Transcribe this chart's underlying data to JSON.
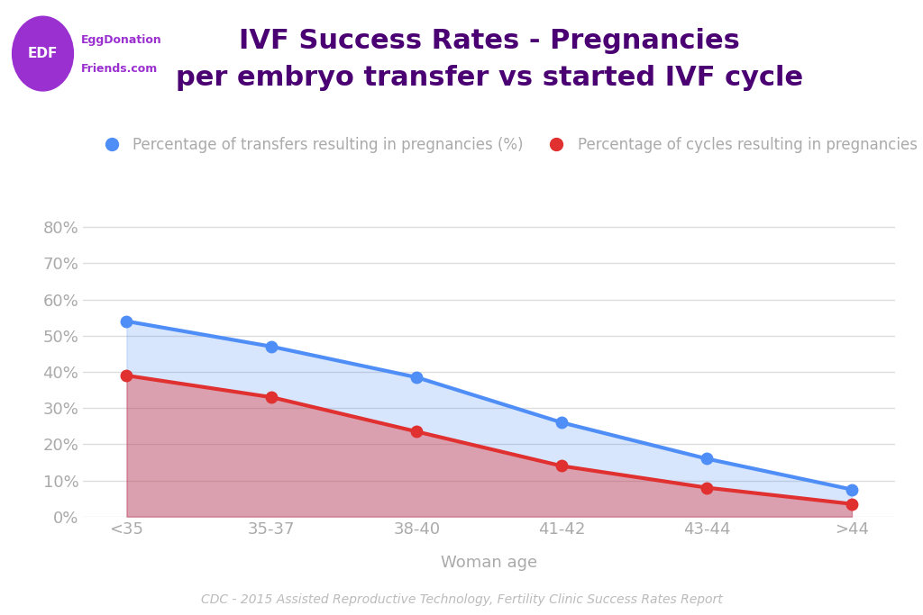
{
  "title_line1": "IVF Success Rates - Pregnancies",
  "title_line2": "per embryo transfer vs started IVF cycle",
  "title_color": "#4a0072",
  "xlabel": "Woman age",
  "xlabel_color": "#888888",
  "footer": "CDC - 2015 Assisted Reproductive Technology, Fertility Clinic Success Rates Report",
  "footer_color": "#bbbbbb",
  "categories": [
    "<35",
    "35-37",
    "38-40",
    "41-42",
    "43-44",
    ">44"
  ],
  "blue_values": [
    0.54,
    0.47,
    0.385,
    0.26,
    0.16,
    0.075
  ],
  "red_values": [
    0.39,
    0.33,
    0.235,
    0.14,
    0.08,
    0.035
  ],
  "blue_color": "#4f8ef7",
  "red_color": "#e03030",
  "blue_label": "Percentage of transfers resulting in pregnancies (%)",
  "red_label": "Percentage of cycles resulting in pregnancies (%)",
  "ylim": [
    0,
    0.85
  ],
  "yticks": [
    0.0,
    0.1,
    0.2,
    0.3,
    0.4,
    0.5,
    0.6,
    0.7,
    0.8
  ],
  "ytick_labels": [
    "0%",
    "10%",
    "20%",
    "30%",
    "40%",
    "50%",
    "60%",
    "70%",
    "80%"
  ],
  "grid_color": "#dddddd",
  "bg_color": "#ffffff",
  "logo_bg": "#9b30d0",
  "logo_text": "EDF",
  "logo_text_color": "#ffffff",
  "brand_line1": "EggDonation",
  "brand_line2": "Friends.com",
  "brand_color": "#9b30d0",
  "line_width": 3,
  "marker_size": 9,
  "title_fontsize": 22,
  "label_fontsize": 13,
  "tick_fontsize": 13,
  "legend_fontsize": 12,
  "footer_fontsize": 10
}
